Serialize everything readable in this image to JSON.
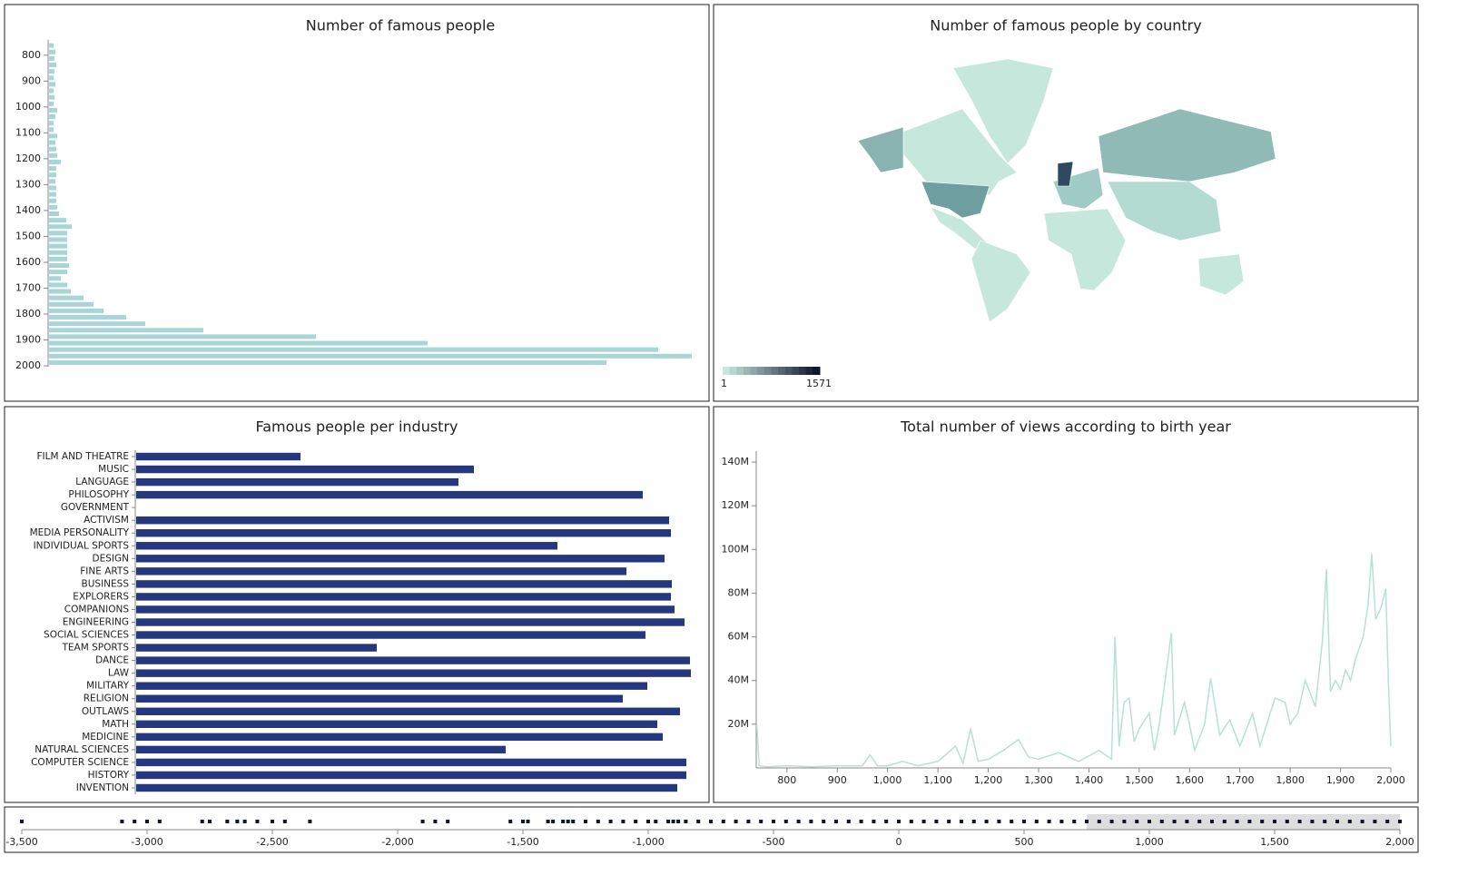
{
  "chart_data": [
    {
      "type": "hbar-years",
      "title": "Number of famous people",
      "x": [
        750,
        775,
        800,
        825,
        850,
        875,
        900,
        925,
        950,
        975,
        1000,
        1025,
        1050,
        1075,
        1100,
        1125,
        1150,
        1175,
        1200,
        1225,
        1250,
        1275,
        1300,
        1325,
        1350,
        1375,
        1400,
        1425,
        1450,
        1475,
        1500,
        1525,
        1550,
        1575,
        1600,
        1625,
        1650,
        1675,
        1700,
        1725,
        1750,
        1775,
        1800,
        1825,
        1850,
        1875,
        1900,
        1925,
        1950,
        1975
      ],
      "values": [
        5,
        7,
        6,
        8,
        6,
        5,
        7,
        5,
        6,
        5,
        9,
        7,
        5,
        5,
        9,
        7,
        8,
        9,
        13,
        8,
        8,
        7,
        8,
        8,
        8,
        9,
        11,
        19,
        25,
        20,
        20,
        20,
        20,
        20,
        22,
        20,
        13,
        20,
        24,
        38,
        49,
        60,
        85,
        106,
        170,
        294,
        417,
        671,
        708,
        614
      ],
      "color": "#a8d5d8",
      "ylim": [
        748,
        2005
      ],
      "yticks": [
        800,
        900,
        1000,
        1100,
        1200,
        1300,
        1400,
        1500,
        1600,
        1700,
        1800,
        1900,
        2000
      ]
    },
    {
      "type": "map",
      "title": "Number of famous people by country",
      "legend": {
        "min": 1,
        "max": 1571,
        "colors": [
          "#c6e7dc",
          "#0f1430"
        ]
      }
    },
    {
      "type": "bar",
      "title": "Famous people per industry",
      "categories": [
        "FILM AND THEATRE",
        "MUSIC",
        "LANGUAGE",
        "PHILOSOPHY",
        "GOVERNMENT",
        "ACTIVISM",
        "MEDIA PERSONALITY",
        "INDIVIDUAL SPORTS",
        "DESIGN",
        "FINE ARTS",
        "BUSINESS",
        "EXPLORERS",
        "COMPANIONS",
        "ENGINEERING",
        "SOCIAL SCIENCES",
        "TEAM SPORTS",
        "DANCE",
        "LAW",
        "MILITARY",
        "RELIGION",
        "OUTLAWS",
        "MATH",
        "MEDICINE",
        "NATURAL SCIENCES",
        "COMPUTER SCIENCE",
        "HISTORY",
        "INVENTION"
      ],
      "values": [
        181,
        372,
        355,
        558,
        0,
        587,
        589,
        464,
        582,
        540,
        590,
        589,
        593,
        604,
        561,
        265,
        610,
        611,
        563,
        536,
        599,
        574,
        580,
        407,
        606,
        606,
        596
      ],
      "color": "#25387f"
    },
    {
      "type": "line",
      "title": "Total number of views according to birth year",
      "x": [
        740,
        745,
        760,
        800,
        850,
        900,
        950,
        965,
        980,
        1000,
        1030,
        1060,
        1100,
        1135,
        1150,
        1165,
        1180,
        1200,
        1230,
        1260,
        1280,
        1300,
        1340,
        1380,
        1420,
        1445,
        1452,
        1460,
        1470,
        1480,
        1490,
        1500,
        1520,
        1530,
        1540,
        1564,
        1570,
        1590,
        1600,
        1610,
        1630,
        1642,
        1660,
        1680,
        1700,
        1712,
        1725,
        1740,
        1756,
        1770,
        1790,
        1800,
        1815,
        1830,
        1850,
        1864,
        1872,
        1880,
        1890,
        1900,
        1910,
        1920,
        1930,
        1945,
        1955,
        1962,
        1970,
        1980,
        1990,
        1995,
        2000
      ],
      "values": [
        20000000,
        1000000,
        500000,
        1000000,
        500000,
        1000000,
        1000000,
        6000000,
        1000000,
        1000000,
        3000000,
        1000000,
        3000000,
        10000000,
        2000000,
        18000000,
        3000000,
        4000000,
        8000000,
        13000000,
        5000000,
        4000000,
        7000000,
        3000000,
        8000000,
        4000000,
        60000000,
        10000000,
        30000000,
        32000000,
        12000000,
        18000000,
        25000000,
        8000000,
        20000000,
        62000000,
        15000000,
        30000000,
        20000000,
        8000000,
        20000000,
        41000000,
        15000000,
        22000000,
        10000000,
        17000000,
        25000000,
        10000000,
        22000000,
        32000000,
        30000000,
        20000000,
        25000000,
        40000000,
        28000000,
        58000000,
        91000000,
        35000000,
        40000000,
        36000000,
        45000000,
        40000000,
        50000000,
        60000000,
        75000000,
        98000000,
        68000000,
        73000000,
        82000000,
        40000000,
        10000000
      ],
      "color": "#b5e2d3",
      "xlim": [
        739,
        2000
      ],
      "ylim": [
        0,
        145000000
      ],
      "xticks": [
        800,
        900,
        {
          "value": 1000,
          "label": "1,000"
        },
        {
          "value": 1100,
          "label": "1,100"
        },
        {
          "value": 1200,
          "label": "1,200"
        },
        {
          "value": 1300,
          "label": "1,300"
        },
        {
          "value": 1400,
          "label": "1,400"
        },
        {
          "value": 1500,
          "label": "1,500"
        },
        {
          "value": 1600,
          "label": "1,600"
        },
        {
          "value": 1700,
          "label": "1,700"
        },
        {
          "value": 1800,
          "label": "1,800"
        },
        {
          "value": 1900,
          "label": "1,900"
        },
        {
          "value": 2000,
          "label": "2,000"
        }
      ],
      "yticks": [
        {
          "value": 20000000,
          "label": "20M"
        },
        {
          "value": 40000000,
          "label": "40M"
        },
        {
          "value": 60000000,
          "label": "60M"
        },
        {
          "value": 80000000,
          "label": "80M"
        },
        {
          "value": 100000000,
          "label": "100M"
        },
        {
          "value": 120000000,
          "label": "120M"
        },
        {
          "value": 140000000,
          "label": "140M"
        }
      ]
    },
    {
      "type": "timeline",
      "x": [
        -3500,
        -3100,
        -3050,
        -3000,
        -2950,
        -2780,
        -2750,
        -2680,
        -2640,
        -2610,
        -2560,
        -2500,
        -2450,
        -2350,
        -1900,
        -1850,
        -1800,
        -1550,
        -1500,
        -1480,
        -1400,
        -1380,
        -1340,
        -1320,
        -1300,
        -1250,
        -1200,
        -1150,
        -1100,
        -1050,
        -1000,
        -970,
        -920,
        -900,
        -880,
        -850,
        -800,
        -750,
        -700,
        -650,
        -600,
        -550,
        -500,
        -450,
        -400,
        -350,
        -300,
        -250,
        -200,
        -150,
        -100,
        -50,
        0,
        50,
        100,
        150,
        200,
        250,
        300,
        350,
        400,
        450,
        500,
        550,
        600,
        650,
        700,
        750,
        800,
        850,
        900,
        950,
        1000,
        1050,
        1100,
        1150,
        1200,
        1250,
        1300,
        1350,
        1400,
        1450,
        1500,
        1550,
        1600,
        1650,
        1700,
        1750,
        1800,
        1850,
        1900,
        1950,
        2000
      ],
      "xlim": [
        -3500,
        2000
      ],
      "brush": [
        750,
        2000
      ],
      "xticks": [
        {
          "value": -3500,
          "label": "-3,500"
        },
        {
          "value": -3000,
          "label": "-3,000"
        },
        {
          "value": -2500,
          "label": "-2,500"
        },
        {
          "value": -2000,
          "label": "-2,000"
        },
        {
          "value": -1500,
          "label": "-1,500"
        },
        {
          "value": -1000,
          "label": "-1,000"
        },
        {
          "value": -500,
          "label": "-500"
        },
        0,
        500,
        {
          "value": 1000,
          "label": "1,000"
        },
        {
          "value": 1500,
          "label": "1,500"
        },
        {
          "value": 2000,
          "label": "2,000"
        }
      ]
    }
  ]
}
